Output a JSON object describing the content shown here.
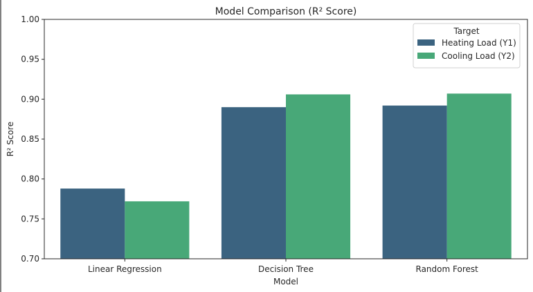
{
  "chart_data": {
    "type": "bar",
    "title": "Model Comparison (R² Score)",
    "xlabel": "Model",
    "ylabel": "R² Score",
    "categories": [
      "Linear Regression",
      "Decision Tree",
      "Random Forest"
    ],
    "series": [
      {
        "name": "Heating Load (Y1)",
        "color": "#3b6380",
        "values": [
          0.788,
          0.89,
          0.892
        ]
      },
      {
        "name": "Cooling Load (Y2)",
        "color": "#48a878",
        "values": [
          0.772,
          0.906,
          0.907
        ]
      }
    ],
    "ylim": [
      0.7,
      1.0
    ],
    "yticks": [
      "0.70",
      "0.75",
      "0.80",
      "0.85",
      "0.90",
      "0.95",
      "1.00"
    ],
    "grid": false,
    "legend": {
      "title": "Target",
      "position": "top-right"
    }
  }
}
